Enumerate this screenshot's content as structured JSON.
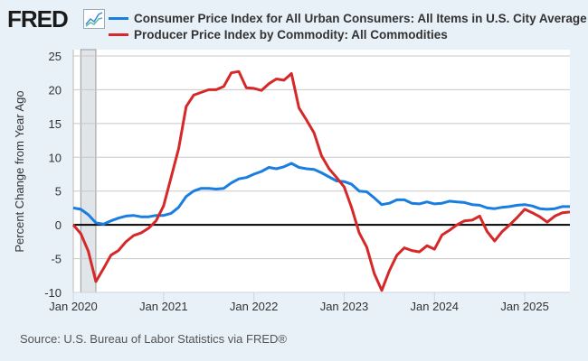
{
  "header": {
    "logo": "FRED",
    "logo_icon": "chart-line-icon"
  },
  "chart_data": {
    "type": "line",
    "title": "",
    "xlabel": "",
    "ylabel": "Percent Change from Year Ago",
    "ylim": [
      -10,
      25
    ],
    "xlim": [
      "2020-01",
      "2025-07"
    ],
    "grid": true,
    "legend_placement": "top",
    "y_ticks": [
      "25",
      "20",
      "15",
      "10",
      "5",
      "0",
      "-5",
      "-10"
    ],
    "x_ticks": [
      "Jan 2020",
      "Jan 2021",
      "Jan 2022",
      "Jan 2023",
      "Jan 2024",
      "Jan 2025"
    ],
    "recession_shading": [
      "2020-02",
      "2020-04"
    ],
    "start_month": "2020-01",
    "frequency": "monthly",
    "series": [
      {
        "name": "Consumer Price Index for All Urban Consumers: All Items in U.S. City Average",
        "color": "#1a7de0",
        "values": [
          2.5,
          2.3,
          1.5,
          0.3,
          0.1,
          0.6,
          1.0,
          1.3,
          1.4,
          1.2,
          1.2,
          1.4,
          1.4,
          1.7,
          2.6,
          4.2,
          5.0,
          5.4,
          5.4,
          5.3,
          5.4,
          6.2,
          6.8,
          7.0,
          7.5,
          7.9,
          8.5,
          8.3,
          8.6,
          9.1,
          8.5,
          8.3,
          8.2,
          7.7,
          7.1,
          6.5,
          6.4,
          6.0,
          5.0,
          4.9,
          4.0,
          3.0,
          3.2,
          3.7,
          3.7,
          3.2,
          3.1,
          3.4,
          3.1,
          3.2,
          3.5,
          3.4,
          3.3,
          3.0,
          2.9,
          2.5,
          2.4,
          2.6,
          2.7,
          2.9,
          3.0,
          2.8,
          2.4,
          2.3,
          2.4,
          2.7,
          2.7
        ]
      },
      {
        "name": "Producer Price Index by Commodity: All Commodities",
        "color": "#d62828",
        "values": [
          0.0,
          -1.3,
          -3.9,
          -8.4,
          -6.5,
          -4.5,
          -3.8,
          -2.5,
          -1.6,
          -1.2,
          -0.5,
          0.6,
          2.8,
          7.0,
          11.3,
          17.5,
          19.2,
          19.6,
          20.0,
          20.0,
          20.5,
          22.5,
          22.7,
          20.3,
          20.2,
          19.9,
          20.9,
          21.6,
          21.4,
          22.4,
          17.3,
          15.5,
          13.6,
          10.2,
          8.3,
          7.0,
          5.6,
          2.5,
          -1.2,
          -3.3,
          -7.2,
          -9.7,
          -6.8,
          -4.5,
          -3.4,
          -3.8,
          -4.0,
          -3.1,
          -3.6,
          -1.5,
          -0.8,
          0.0,
          0.6,
          0.7,
          1.3,
          -1.0,
          -2.4,
          -1.0,
          0.0,
          1.1,
          2.3,
          1.8,
          1.2,
          0.4,
          1.3,
          1.8,
          1.9
        ]
      }
    ]
  },
  "footer": {
    "source": "Source: U.S. Bureau of Labor Statistics via FRED®"
  }
}
